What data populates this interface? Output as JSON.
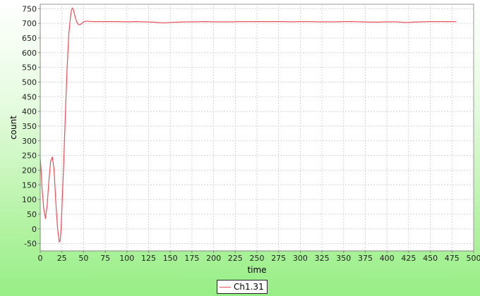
{
  "chart_data": {
    "type": "line",
    "title": "",
    "xlabel": "time",
    "ylabel": "count",
    "xlim": [
      0,
      500
    ],
    "ylim": [
      -75,
      765
    ],
    "xticks": [
      0,
      25,
      50,
      75,
      100,
      125,
      150,
      175,
      200,
      225,
      250,
      275,
      300,
      325,
      350,
      375,
      400,
      425,
      450,
      475,
      500
    ],
    "yticks": [
      -50,
      0,
      50,
      100,
      150,
      200,
      250,
      300,
      350,
      400,
      450,
      500,
      550,
      600,
      650,
      700,
      750
    ],
    "grid": true,
    "legend_position": "bottom-center",
    "series": [
      {
        "name": "Ch1.31",
        "color": "#e8505b",
        "x": [
          0,
          1,
          2,
          4,
          6,
          8,
          10,
          12,
          14,
          16,
          18,
          20,
          22,
          23,
          24,
          25,
          27,
          29,
          31,
          33,
          35,
          36,
          37,
          38,
          39,
          40,
          42,
          44,
          46,
          48,
          50,
          52,
          55,
          60,
          70,
          80,
          90,
          100,
          110,
          120,
          130,
          140,
          145,
          150,
          160,
          170,
          180,
          190,
          200,
          210,
          220,
          230,
          240,
          250,
          260,
          270,
          280,
          290,
          300,
          310,
          320,
          330,
          340,
          350,
          360,
          370,
          380,
          390,
          400,
          410,
          420,
          425,
          430,
          440,
          450,
          460,
          470,
          480
        ],
        "y": [
          240,
          200,
          140,
          70,
          35,
          80,
          165,
          230,
          245,
          200,
          90,
          0,
          -45,
          -40,
          0,
          70,
          220,
          390,
          550,
          665,
          725,
          745,
          752,
          748,
          738,
          725,
          705,
          696,
          695,
          700,
          705,
          707,
          707,
          706,
          706,
          706,
          706,
          705,
          706,
          705,
          704,
          702,
          702,
          703,
          704,
          705,
          705,
          706,
          705,
          705,
          705,
          706,
          706,
          706,
          706,
          706,
          706,
          705,
          706,
          706,
          705,
          705,
          705,
          706,
          706,
          705,
          704,
          704,
          705,
          705,
          703,
          703,
          704,
          705,
          706,
          706,
          706,
          706
        ]
      }
    ]
  },
  "legend": {
    "label": "Ch1.31"
  }
}
